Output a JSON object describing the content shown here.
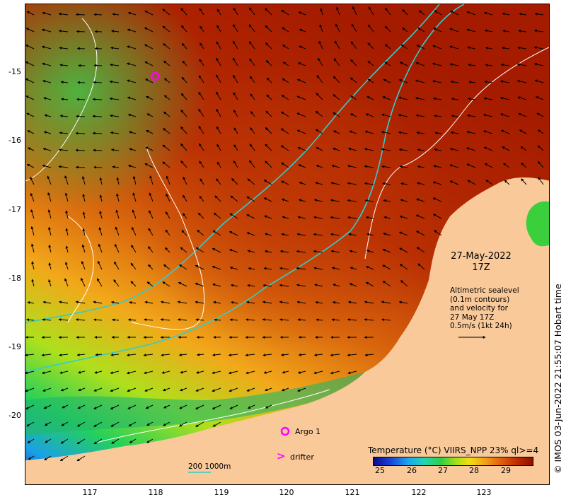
{
  "map": {
    "title_date": "27-May-2022",
    "title_time": "17Z",
    "info_lines": [
      "Altimetric sealevel",
      "(0.1m contours)",
      "and velocity for",
      "27 May 17Z",
      "0.5m/s (1kt 24h)"
    ],
    "copyright": "© IMOS 03-Jun-2022 21:55:07 Hobart time",
    "lat_ticks": [
      "-15",
      "-16",
      "-17",
      "-18",
      "-19",
      "-20"
    ],
    "lon_ticks": [
      "117",
      "118",
      "119",
      "120",
      "121",
      "122",
      "123"
    ],
    "argo_label": "Argo 1",
    "drifter_label": "drifter",
    "drifter_symbol": ">",
    "scale_labels": [
      "200",
      "1000m"
    ],
    "argo_location": [
      118.0,
      -15.1
    ]
  },
  "legend": {
    "title": "Temperature (°C) VIIRS_NPP 23% ql>=4",
    "ticks": [
      "25",
      "26",
      "27",
      "28",
      "29"
    ]
  },
  "colors": {
    "land": "#f9c999",
    "warm": "#b22000",
    "marker": "#ff00ff",
    "isobath": "#33cccc",
    "contour": "#ffffff"
  }
}
